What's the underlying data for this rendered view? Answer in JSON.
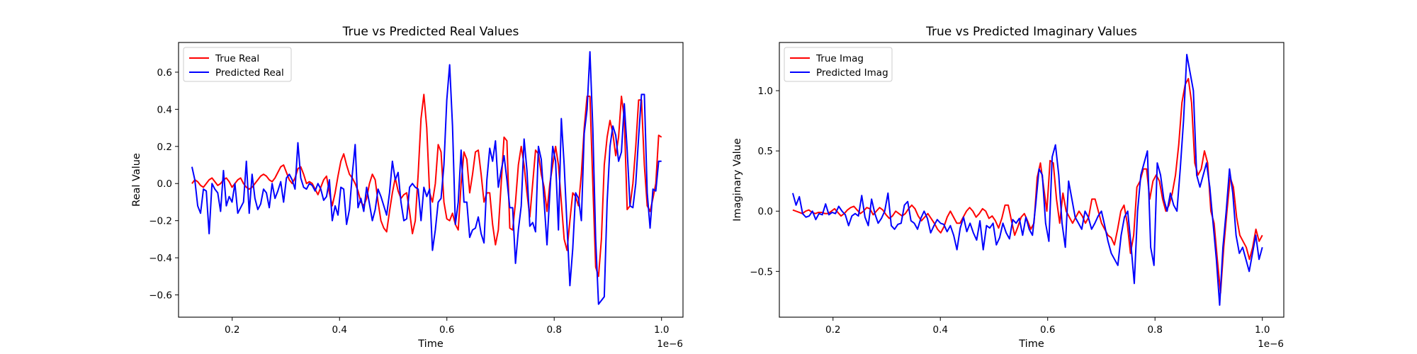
{
  "chart_data": [
    {
      "type": "line",
      "title": "True vs Predicted Real Values",
      "xlabel": "Time",
      "ylabel": "Real Value",
      "x_offset_label": "1e−6",
      "xlim": [
        0.1,
        1.04
      ],
      "ylim": [
        -0.72,
        0.76
      ],
      "xticks": [
        0.2,
        0.4,
        0.6,
        0.8,
        1.0
      ],
      "xtick_labels": [
        "0.2",
        "0.4",
        "0.6",
        "0.8",
        "1.0"
      ],
      "yticks": [
        -0.6,
        -0.4,
        -0.2,
        0.0,
        0.2,
        0.4,
        0.6
      ],
      "ytick_labels": [
        "−0.6",
        "−0.4",
        "−0.2",
        "0.0",
        "0.2",
        "0.4",
        "0.6"
      ],
      "legend_position": "top-left",
      "grid": false,
      "x_range": [
        0.125,
        1.0
      ],
      "series": [
        {
          "name": "True Real",
          "color": "#ff0000",
          "values": [
            0.0,
            0.02,
            0.01,
            -0.01,
            -0.02,
            0.0,
            0.02,
            0.03,
            0.01,
            -0.01,
            0.0,
            0.02,
            0.03,
            0.01,
            -0.02,
            0.0,
            0.02,
            0.03,
            0.0,
            -0.02,
            -0.03,
            -0.02,
            0.0,
            0.02,
            0.04,
            0.05,
            0.04,
            0.02,
            0.01,
            0.03,
            0.06,
            0.09,
            0.1,
            0.06,
            0.02,
            0.0,
            0.03,
            0.08,
            0.09,
            0.05,
            0.0,
            0.01,
            0.0,
            -0.03,
            -0.06,
            -0.02,
            0.02,
            0.04,
            -0.05,
            -0.12,
            -0.05,
            0.04,
            0.12,
            0.16,
            0.1,
            0.05,
            0.03,
            0.0,
            -0.04,
            -0.1,
            -0.12,
            -0.08,
            0.0,
            0.05,
            0.02,
            -0.1,
            -0.2,
            -0.24,
            -0.26,
            -0.15,
            -0.05,
            0.03,
            -0.04,
            -0.08,
            -0.06,
            -0.05,
            -0.15,
            -0.27,
            -0.2,
            0.05,
            0.35,
            0.48,
            0.3,
            -0.05,
            -0.1,
            0.0,
            0.21,
            0.17,
            -0.1,
            -0.19,
            -0.2,
            -0.16,
            -0.22,
            -0.25,
            0.0,
            0.17,
            0.13,
            -0.05,
            0.05,
            0.17,
            0.18,
            0.05,
            -0.1,
            -0.05,
            -0.05,
            -0.22,
            -0.33,
            -0.25,
            0.0,
            0.25,
            0.23,
            -0.24,
            -0.25,
            -0.1,
            0.1,
            0.2,
            0.1,
            -0.05,
            -0.18,
            0.0,
            0.18,
            0.16,
            0.05,
            -0.02,
            -0.15,
            0.0,
            0.1,
            0.2,
            0.1,
            -0.1,
            -0.3,
            -0.36,
            -0.2,
            -0.05,
            -0.07,
            -0.12,
            0.05,
            0.3,
            0.47,
            0.47,
            0.0,
            -0.45,
            -0.5,
            -0.3,
            0.1,
            0.25,
            0.34,
            0.27,
            0.15,
            0.25,
            0.47,
            0.35,
            -0.14,
            -0.12,
            0.0,
            0.2,
            0.45,
            0.45,
            0.1,
            -0.12,
            -0.15,
            -0.08,
            0.0,
            0.26,
            0.25
          ]
        },
        {
          "name": "Predicted Real",
          "color": "#0000ff",
          "values": [
            0.09,
            0.02,
            -0.12,
            -0.16,
            -0.03,
            -0.04,
            -0.27,
            0.0,
            -0.03,
            -0.05,
            -0.15,
            0.07,
            -0.12,
            -0.07,
            -0.1,
            0.0,
            -0.16,
            -0.13,
            -0.1,
            0.12,
            -0.16,
            0.05,
            -0.08,
            -0.14,
            -0.11,
            -0.03,
            -0.05,
            -0.13,
            0.0,
            -0.08,
            -0.04,
            0.01,
            -0.1,
            0.03,
            0.05,
            0.02,
            -0.03,
            0.22,
            0.03,
            -0.02,
            -0.03,
            0.0,
            -0.01,
            -0.04,
            0.0,
            -0.03,
            -0.09,
            -0.07,
            0.02,
            -0.2,
            -0.12,
            -0.17,
            -0.02,
            -0.03,
            -0.22,
            -0.14,
            0.05,
            0.21,
            -0.13,
            -0.08,
            -0.15,
            -0.02,
            -0.11,
            -0.2,
            -0.14,
            -0.03,
            -0.07,
            -0.12,
            -0.17,
            -0.05,
            0.12,
            0.02,
            0.06,
            -0.1,
            -0.2,
            -0.19,
            -0.02,
            0.0,
            -0.02,
            -0.03,
            -0.2,
            -0.02,
            -0.07,
            -0.03,
            -0.36,
            -0.25,
            -0.1,
            -0.08,
            0.1,
            0.45,
            0.64,
            0.31,
            -0.22,
            -0.1,
            0.18,
            -0.1,
            -0.1,
            -0.29,
            -0.25,
            -0.24,
            -0.18,
            -0.27,
            -0.32,
            0.02,
            0.19,
            0.12,
            0.23,
            -0.02,
            0.07,
            0.15,
            0.02,
            -0.13,
            -0.13,
            -0.43,
            -0.25,
            -0.12,
            0.24,
            0.07,
            -0.23,
            -0.21,
            -0.26,
            0.2,
            0.13,
            -0.1,
            -0.33,
            -0.05,
            0.2,
            0.12,
            -0.25,
            0.35,
            0.1,
            -0.23,
            -0.55,
            -0.35,
            -0.05,
            -0.08,
            -0.2,
            0.27,
            0.4,
            0.71,
            0.3,
            -0.3,
            -0.65,
            -0.63,
            -0.61,
            -0.1,
            0.2,
            0.31,
            0.26,
            0.12,
            0.17,
            0.43,
            0.18,
            -0.12,
            -0.13,
            0.0,
            0.25,
            0.48,
            0.48,
            -0.05,
            -0.24,
            -0.03,
            -0.04,
            0.12,
            0.12
          ]
        }
      ]
    },
    {
      "type": "line",
      "title": "True vs Predicted Imaginary Values",
      "xlabel": "Time",
      "ylabel": "Imaginary Value",
      "x_offset_label": "1e−6",
      "xlim": [
        0.1,
        1.04
      ],
      "ylim": [
        -0.88,
        1.4
      ],
      "xticks": [
        0.2,
        0.4,
        0.6,
        0.8,
        1.0
      ],
      "xtick_labels": [
        "0.2",
        "0.4",
        "0.6",
        "0.8",
        "1.0"
      ],
      "yticks": [
        -0.5,
        0.0,
        0.5,
        1.0
      ],
      "ytick_labels": [
        "−0.5",
        "0.0",
        "0.5",
        "1.0"
      ],
      "legend_position": "top-left",
      "grid": false,
      "x_range": [
        0.125,
        1.0
      ],
      "series": [
        {
          "name": "True Imag",
          "color": "#ff0000",
          "values": [
            0.01,
            0.0,
            -0.01,
            -0.02,
            0.0,
            0.01,
            -0.01,
            -0.02,
            -0.01,
            -0.01,
            -0.02,
            -0.02,
            0.0,
            0.02,
            -0.01,
            -0.04,
            -0.02,
            0.01,
            0.03,
            0.04,
            0.01,
            -0.02,
            0.0,
            0.03,
            0.02,
            -0.03,
            0.0,
            0.03,
            0.01,
            -0.03,
            -0.06,
            -0.04,
            0.0,
            -0.02,
            -0.04,
            -0.02,
            0.02,
            0.05,
            0.02,
            -0.04,
            -0.08,
            -0.05,
            -0.02,
            -0.06,
            -0.1,
            -0.15,
            -0.18,
            -0.13,
            -0.05,
            0.0,
            -0.05,
            -0.1,
            -0.1,
            -0.05,
            0.0,
            0.03,
            0.0,
            -0.05,
            -0.02,
            0.02,
            0.0,
            -0.06,
            -0.04,
            -0.08,
            -0.14,
            -0.06,
            0.05,
            0.05,
            -0.08,
            -0.2,
            -0.13,
            -0.05,
            -0.02,
            -0.08,
            -0.15,
            -0.1,
            0.28,
            0.4,
            0.2,
            0.0,
            0.42,
            0.4,
            0.1,
            -0.1,
            0.15,
            0.0,
            -0.05,
            -0.1,
            -0.05,
            0.0,
            -0.04,
            -0.1,
            -0.05,
            0.1,
            0.1,
            0.0,
            -0.1,
            -0.15,
            -0.2,
            -0.22,
            -0.28,
            -0.15,
            0.0,
            0.05,
            -0.1,
            -0.35,
            -0.2,
            0.2,
            0.25,
            0.35,
            0.35,
            0.1,
            0.25,
            0.3,
            0.25,
            0.1,
            0.0,
            0.05,
            0.15,
            0.3,
            0.55,
            0.9,
            1.05,
            1.1,
            0.9,
            0.4,
            0.3,
            0.35,
            0.5,
            0.4,
            0.0,
            -0.1,
            -0.4,
            -0.68,
            -0.3,
            0.0,
            0.28,
            0.2,
            -0.05,
            -0.2,
            -0.25,
            -0.3,
            -0.4,
            -0.3,
            -0.15,
            -0.25,
            -0.2
          ]
        },
        {
          "name": "Predicted Imag",
          "color": "#0000ff",
          "values": [
            0.15,
            0.05,
            0.12,
            -0.02,
            -0.05,
            -0.04,
            0.0,
            -0.07,
            -0.02,
            -0.03,
            0.06,
            -0.03,
            -0.01,
            -0.02,
            0.04,
            0.0,
            -0.03,
            -0.12,
            -0.04,
            -0.02,
            -0.04,
            0.13,
            -0.05,
            -0.12,
            0.1,
            -0.02,
            -0.1,
            -0.06,
            0.0,
            0.15,
            -0.12,
            -0.15,
            -0.11,
            -0.1,
            0.05,
            0.08,
            -0.08,
            -0.1,
            -0.15,
            -0.06,
            0.0,
            -0.06,
            -0.18,
            -0.12,
            -0.07,
            -0.1,
            -0.11,
            -0.17,
            -0.12,
            -0.2,
            -0.32,
            -0.14,
            -0.05,
            -0.17,
            -0.1,
            -0.18,
            -0.24,
            -0.08,
            -0.32,
            -0.12,
            -0.14,
            -0.1,
            -0.28,
            -0.22,
            -0.1,
            -0.18,
            -0.23,
            -0.07,
            -0.1,
            -0.06,
            -0.2,
            -0.05,
            -0.15,
            -0.2,
            0.06,
            0.35,
            0.3,
            -0.1,
            -0.25,
            0.45,
            0.55,
            0.3,
            -0.1,
            -0.3,
            0.25,
            0.1,
            -0.05,
            -0.1,
            -0.15,
            0.0,
            -0.05,
            -0.15,
            -0.1,
            -0.04,
            0.0,
            -0.12,
            -0.25,
            -0.35,
            -0.4,
            -0.45,
            -0.2,
            -0.05,
            0.0,
            -0.28,
            -0.6,
            0.0,
            0.3,
            0.4,
            0.5,
            -0.3,
            -0.45,
            0.4,
            0.3,
            0.1,
            0.0,
            0.15,
            0.05,
            0.0,
            0.35,
            0.75,
            1.3,
            1.15,
            1.0,
            0.3,
            0.2,
            0.3,
            0.4,
            0.2,
            -0.1,
            -0.4,
            -0.78,
            -0.3,
            0.0,
            0.35,
            0.15,
            -0.2,
            -0.35,
            -0.3,
            -0.4,
            -0.5,
            -0.35,
            -0.2,
            -0.4,
            -0.3
          ]
        }
      ]
    }
  ]
}
